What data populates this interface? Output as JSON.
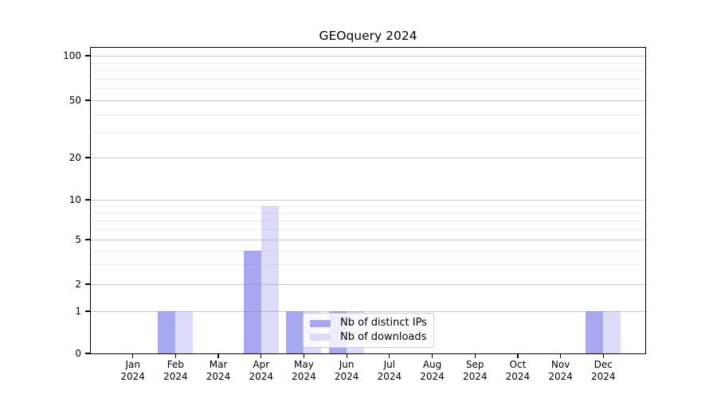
{
  "chart_data": {
    "type": "bar",
    "title": "GEOquery 2024",
    "x_categories": [
      "Jan",
      "Feb",
      "Mar",
      "Apr",
      "May",
      "Jun",
      "Jul",
      "Aug",
      "Sep",
      "Oct",
      "Nov",
      "Dec"
    ],
    "x_year": "2024",
    "series": [
      {
        "name": "Nb of distinct IPs",
        "color": "#a8a8f0",
        "values": [
          0,
          1,
          0,
          4,
          1,
          1,
          0,
          0,
          0,
          0,
          0,
          1
        ]
      },
      {
        "name": "Nb of downloads",
        "color": "#dcdcf8",
        "values": [
          0,
          1,
          0,
          9,
          1,
          1,
          0,
          0,
          0,
          0,
          0,
          1
        ]
      }
    ],
    "y_major_ticks": [
      0,
      1,
      2,
      5,
      10,
      20,
      50,
      100
    ],
    "y_minor_ticks": [
      3,
      4,
      6,
      7,
      8,
      9,
      30,
      40,
      60,
      70,
      80,
      90
    ],
    "y_scale": "log-like with zero baseline",
    "ylim": [
      0,
      100
    ],
    "grid": true,
    "legend_position": "lower center inside plot"
  },
  "colors": {
    "axis": "#000000",
    "grid_major": "#cfcfcf",
    "grid_minor": "#ebebeb",
    "legend_border": "#cccccc"
  }
}
